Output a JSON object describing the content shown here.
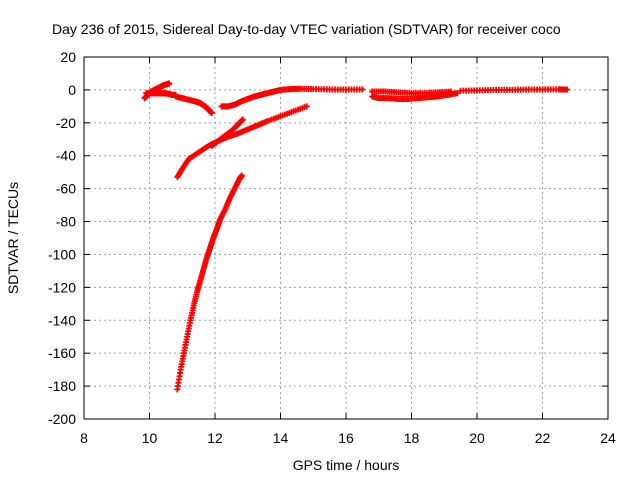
{
  "chart_data": {
    "type": "scatter",
    "title": "Day 236 of 2015, Sidereal Day-to-day VTEC variation (SDTVAR) for receiver coco",
    "xlabel": "GPS time / hours",
    "ylabel": "SDTVAR / TECUs",
    "xlim": [
      8,
      24
    ],
    "ylim": [
      -200,
      20
    ],
    "xticks": [
      8,
      10,
      12,
      14,
      16,
      18,
      20,
      22,
      24
    ],
    "yticks": [
      20,
      0,
      -20,
      -40,
      -60,
      -80,
      -100,
      -120,
      -140,
      -160,
      -180,
      -200
    ],
    "grid": true,
    "marker": "plus",
    "color": "#ff0000",
    "series": [
      {
        "x": [
          9.85,
          9.95,
          10.05,
          10.15,
          10.25,
          10.35,
          10.45,
          10.55,
          10.6
        ],
        "y": [
          -5,
          -3,
          -1,
          0,
          1,
          2,
          3,
          3.5,
          4
        ]
      },
      {
        "x": [
          9.9,
          10.0,
          10.1,
          10.2,
          10.3,
          10.4,
          10.5,
          10.6,
          10.7,
          10.8
        ],
        "y": [
          -2,
          -2,
          -2,
          -2,
          -2,
          -2,
          -2,
          -2.5,
          -3,
          -3
        ]
      },
      {
        "x": [
          10.8,
          11.0,
          11.2,
          11.4,
          11.55,
          11.7,
          11.8,
          11.9
        ],
        "y": [
          -4,
          -5,
          -6,
          -7,
          -8,
          -10,
          -12,
          -14
        ]
      },
      {
        "x": [
          12.2,
          12.4,
          12.6,
          12.8,
          13.0,
          13.2,
          13.4,
          13.6,
          13.8,
          14.0,
          14.3,
          14.6,
          15.0,
          15.5,
          16.0,
          16.5
        ],
        "y": [
          -10,
          -10,
          -9,
          -7,
          -5.5,
          -4,
          -3,
          -2,
          -1,
          0,
          0.5,
          0.7,
          0.5,
          0.3,
          0.2,
          0.3
        ]
      },
      {
        "x": [
          16.8,
          17.0,
          17.3,
          17.6,
          17.9,
          18.2,
          18.5,
          18.8,
          19.1,
          19.4
        ],
        "y": [
          -4,
          -5,
          -5,
          -5.5,
          -5.5,
          -5,
          -4.5,
          -4,
          -3,
          -2
        ]
      },
      {
        "x": [
          16.8,
          17.2,
          17.6,
          18.0,
          18.4,
          18.8,
          19.2
        ],
        "y": [
          -1,
          -1,
          -1.5,
          -2,
          -2,
          -1.5,
          -1
        ]
      },
      {
        "x": [
          19.5,
          20.0,
          20.5,
          21.0,
          21.5,
          22.0,
          22.5,
          22.75
        ],
        "y": [
          -0.5,
          -0.3,
          0,
          0,
          0.2,
          0.3,
          0.3,
          0.2
        ]
      },
      {
        "x": [
          10.85,
          11.0,
          11.2,
          11.5,
          11.8,
          12.1,
          12.4,
          12.7,
          13.0,
          13.3,
          13.6,
          14.0,
          14.4,
          14.8
        ],
        "y": [
          -53,
          -48,
          -42,
          -38,
          -34,
          -31,
          -28.5,
          -26.5,
          -24,
          -21.5,
          -19,
          -16,
          -13,
          -10
        ]
      },
      {
        "x": [
          11.9,
          12.1,
          12.3,
          12.5,
          12.7,
          12.85
        ],
        "y": [
          -34,
          -31,
          -28,
          -25,
          -21,
          -18
        ]
      },
      {
        "x": [
          10.85,
          10.95,
          11.05,
          11.15,
          11.25,
          11.35,
          11.45,
          11.55,
          11.65,
          11.75,
          11.85,
          11.95,
          12.05,
          12.15,
          12.3,
          12.45,
          12.6,
          12.75,
          12.82
        ],
        "y": [
          -182,
          -170,
          -160,
          -150,
          -140,
          -131,
          -123,
          -116,
          -109,
          -102,
          -96,
          -90,
          -85,
          -79,
          -73,
          -66,
          -60,
          -54,
          -52
        ]
      }
    ]
  }
}
